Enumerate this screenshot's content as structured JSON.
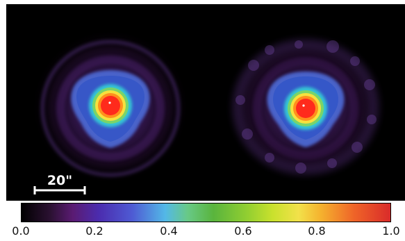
{
  "figure": {
    "scale_bar_label": "20\"",
    "colorbar": {
      "ticks": [
        "0.0",
        "0.2",
        "0.4",
        "0.6",
        "0.8",
        "1.0"
      ],
      "colors": [
        "#000000",
        "#2b1132",
        "#5a1b72",
        "#4b2cae",
        "#4e5ad3",
        "#53b8e7",
        "#68c987",
        "#59b43d",
        "#91ce31",
        "#c9e12d",
        "#f2e14a",
        "#f5b22e",
        "#ef6428",
        "#d92a2a"
      ]
    },
    "left_panel": {
      "description": "smoothed intensity map"
    },
    "right_panel": {
      "description": "noisier intensity map"
    }
  }
}
